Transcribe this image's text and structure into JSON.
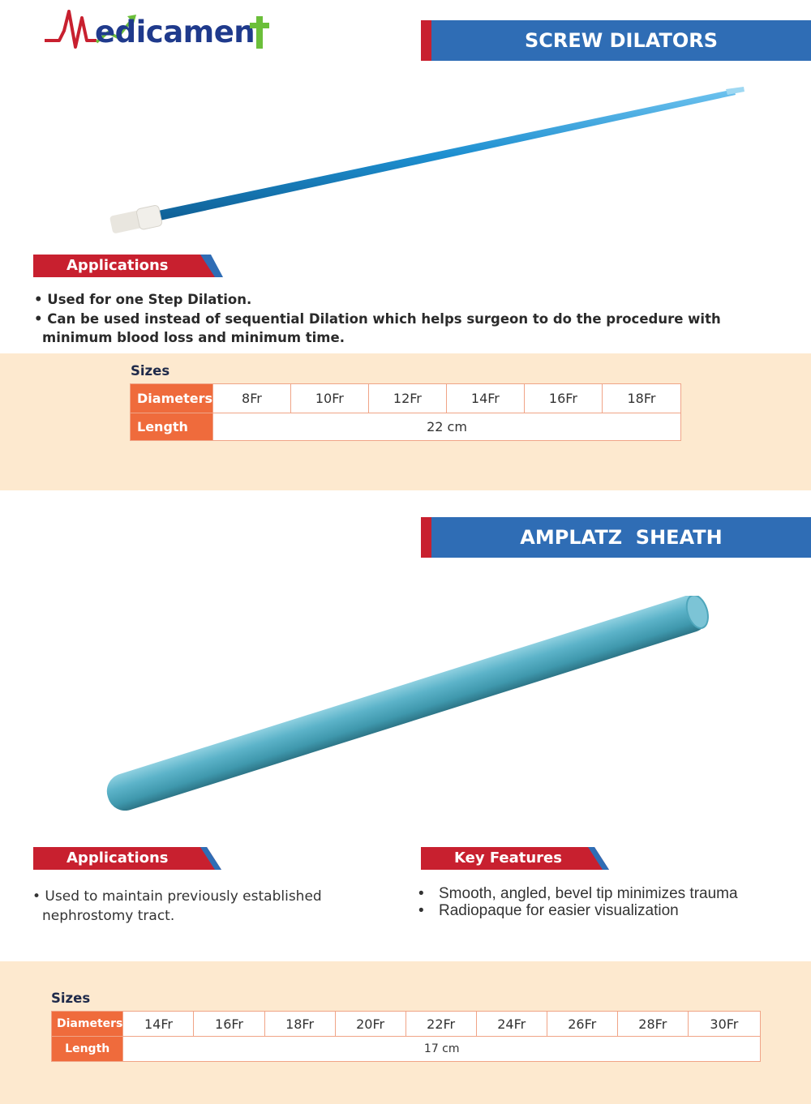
{
  "brand": {
    "name": "Medicament",
    "text_rest": "edicamen",
    "colors": {
      "blue": "#1f3a8c",
      "red": "#c8202f",
      "green": "#6bbf3a"
    }
  },
  "sections": [
    {
      "title": "SCREW DILATORS",
      "applications_label": "Applications",
      "applications": [
        "• Used for one Step Dilation.",
        "• Can be used instead of sequential Dilation which helps surgeon to do the procedure with minimum blood loss and minimum time."
      ],
      "sizes_label": "Sizes",
      "diameters_label": "Diameters",
      "diameters": [
        "8Fr",
        "10Fr",
        "12Fr",
        "14Fr",
        "16Fr",
        "18Fr"
      ],
      "length_label": "Length",
      "length": "22 cm"
    },
    {
      "title": "AMPLATZ  SHEATH",
      "applications_label": "Applications",
      "applications": [
        "• Used to maintain previously established nephrostomy tract."
      ],
      "features_label": "Key Features",
      "features": [
        "Smooth, angled, bevel tip minimizes trauma",
        "Radiopaque for easier visualization"
      ],
      "sizes_label": "Sizes",
      "diameters_label": "Diameters",
      "diameters": [
        "14Fr",
        "16Fr",
        "18Fr",
        "20Fr",
        "22Fr",
        "24Fr",
        "26Fr",
        "28Fr",
        "30Fr"
      ],
      "length_label": "Length",
      "length": "17 cm"
    }
  ],
  "theme": {
    "banner_blue": "#2f6db5",
    "banner_red": "#c8202f",
    "panel_bg": "#fde9cf",
    "table_header": "#ef6b3c"
  }
}
